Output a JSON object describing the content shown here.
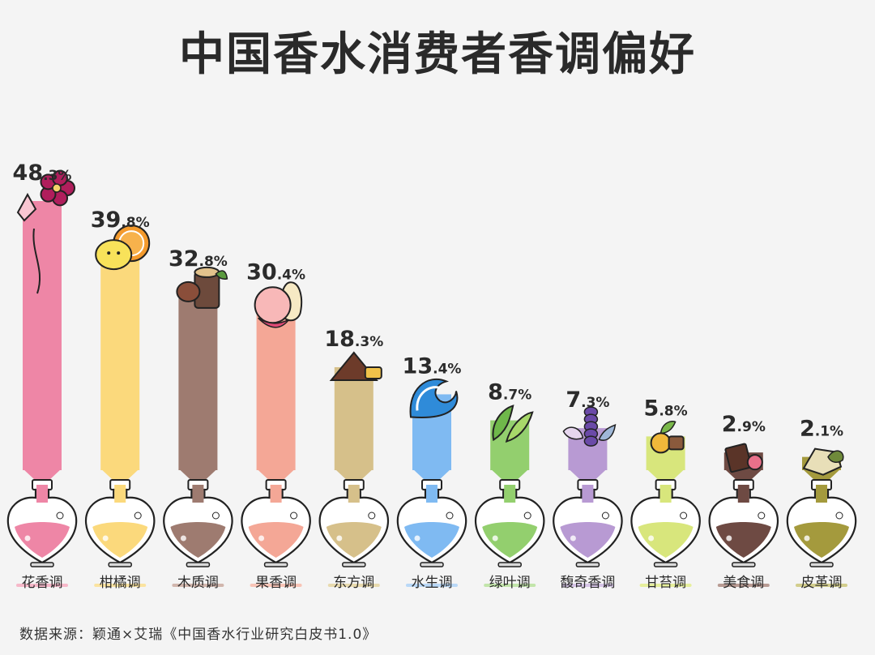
{
  "title": "中国香水消费者香调偏好",
  "source": "数据来源：颖通×艾瑞《中国香水行业研究白皮书1.0》",
  "chart_data": {
    "type": "bar",
    "categories": [
      "花香调",
      "柑橘调",
      "木质调",
      "果香调",
      "东方调",
      "水生调",
      "绿叶调",
      "馥奇香调",
      "甘苔调",
      "美食调",
      "皮革调"
    ],
    "values": [
      48.3,
      39.8,
      32.8,
      30.4,
      18.3,
      13.4,
      8.7,
      7.3,
      5.8,
      2.9,
      2.1
    ],
    "unit": "%",
    "colors": [
      "#ee86a6",
      "#fbd97c",
      "#9e7b70",
      "#f4a796",
      "#d6c08a",
      "#7fbaf2",
      "#93cf6e",
      "#b89ad3",
      "#d8e67c",
      "#6e4a43",
      "#a49a3d"
    ],
    "underline_colors": [
      "#f6b8c9",
      "#fbe3a0",
      "#d1b6ad",
      "#f8c4b6",
      "#e8daae",
      "#b9d8f7",
      "#c2e5aa",
      "#d6c5e7",
      "#e6ef9c",
      "#b89b93",
      "#d2cd8c"
    ],
    "icons": [
      "flower-icon",
      "lemon-orange-icon",
      "wood-log-icon",
      "peach-pear-icon",
      "spice-anise-icon",
      "wave-icon",
      "leaf-icon",
      "lavender-icon",
      "moss-icon",
      "chocolate-candy-icon",
      "leather-icon"
    ]
  }
}
